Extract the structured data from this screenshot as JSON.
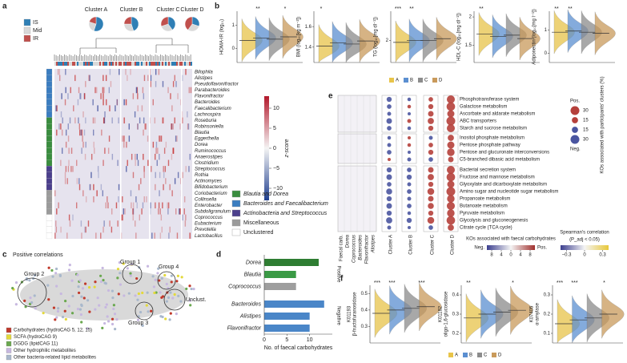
{
  "panel_labels": [
    "a",
    "b",
    "c",
    "d",
    "e",
    "f"
  ],
  "chart_data": [
    {
      "type": "heatmap",
      "clusters": [
        {
          "name": "Cluster A",
          "pie": [
            55,
            25,
            20
          ]
        },
        {
          "name": "Cluster B",
          "pie": [
            45,
            30,
            25
          ]
        },
        {
          "name": "Cluster C",
          "pie": [
            40,
            30,
            30
          ]
        },
        {
          "name": "Cluster D",
          "pie": [
            30,
            30,
            40
          ]
        }
      ],
      "pie_legend": [
        "IS",
        "Mid",
        "IR"
      ],
      "pie_colors": [
        "#2f7fb5",
        "#d9d9d9",
        "#c0504d"
      ],
      "groups": [
        {
          "name": "Blautia and Dorea",
          "color": "#3a8d3f"
        },
        {
          "name": "Bacteroides and Faecalibacterium",
          "color": "#3b7dc0"
        },
        {
          "name": "Actinobacteria and Streptococcus",
          "color": "#4b3f8c"
        },
        {
          "name": "Miscellaneous",
          "color": "#9a9a9a"
        },
        {
          "name": "Unclustered",
          "color": "#ffffff"
        }
      ],
      "taxa": [
        {
          "name": "Bilophila",
          "group": "Bacteroides and Faecalibacterium"
        },
        {
          "name": "Alistipes",
          "group": "Bacteroides and Faecalibacterium"
        },
        {
          "name": "Pseudoflavonifractor",
          "group": "Bacteroides and Faecalibacterium"
        },
        {
          "name": "Parabacteroides",
          "group": "Bacteroides and Faecalibacterium"
        },
        {
          "name": "Flavonifractor",
          "group": "Bacteroides and Faecalibacterium"
        },
        {
          "name": "Bacteroides",
          "group": "Bacteroides and Faecalibacterium"
        },
        {
          "name": "Faecalibacterium",
          "group": "Bacteroides and Faecalibacterium"
        },
        {
          "name": "Lachnospira",
          "group": "Bacteroides and Faecalibacterium"
        },
        {
          "name": "Roseburia",
          "group": "Blautia and Dorea"
        },
        {
          "name": "Robinsoniella",
          "group": "Blautia and Dorea"
        },
        {
          "name": "Blautia",
          "group": "Blautia and Dorea"
        },
        {
          "name": "Eggerthella",
          "group": "Blautia and Dorea"
        },
        {
          "name": "Dorea",
          "group": "Blautia and Dorea"
        },
        {
          "name": "Ruminococcus",
          "group": "Blautia and Dorea"
        },
        {
          "name": "Anaerostipes",
          "group": "Blautia and Dorea"
        },
        {
          "name": "Clostridium",
          "group": "Blautia and Dorea"
        },
        {
          "name": "Streptococcus",
          "group": "Actinobacteria and Streptococcus"
        },
        {
          "name": "Rothia",
          "group": "Actinobacteria and Streptococcus"
        },
        {
          "name": "Actinomyces",
          "group": "Actinobacteria and Streptococcus"
        },
        {
          "name": "Bifidobacterium",
          "group": "Actinobacteria and Streptococcus"
        },
        {
          "name": "Coriobacterium",
          "group": "Miscellaneous"
        },
        {
          "name": "Collinsella",
          "group": "Miscellaneous"
        },
        {
          "name": "Enterobacter",
          "group": "Miscellaneous"
        },
        {
          "name": "Subdoligranulum",
          "group": "Miscellaneous"
        },
        {
          "name": "Coprococcus",
          "group": "Unclustered"
        },
        {
          "name": "Eubacterium",
          "group": "Unclustered"
        },
        {
          "name": "Prevotella",
          "group": "Unclustered"
        },
        {
          "name": "Lactobacillus",
          "group": "Unclustered"
        }
      ],
      "colorbar": {
        "label": "z-score",
        "lim": [
          -13,
          13
        ],
        "ticks": [
          10,
          5,
          0,
          {
            "value": -5,
            "label": "−5"
          },
          {
            "value": -10,
            "label": "−10"
          }
        ]
      }
    },
    {
      "type": "violin",
      "clusters": [
        {
          "name": "A",
          "color": "#e8c44a"
        },
        {
          "name": "B",
          "color": "#5b8fd1"
        },
        {
          "name": "C",
          "color": "#8c8c8c"
        },
        {
          "name": "D",
          "color": "#c99a5b"
        }
      ],
      "plots": [
        {
          "ylabel": "HOMA-IR (log₁₀)",
          "ylim": [
            -0.6,
            1.6
          ],
          "yticks": [
            0,
            1
          ],
          "medians": [
            0.35,
            0.45,
            0.4,
            0.5
          ],
          "stars": [
            null,
            "**",
            null,
            "*"
          ]
        },
        {
          "ylabel": "BMI (log₁₀[kg m⁻²])",
          "ylim": [
            1.25,
            1.75
          ],
          "yticks": [
            1.4,
            1.6
          ],
          "medians": [
            1.41,
            1.44,
            1.43,
            1.46
          ],
          "stars": [
            "*",
            null,
            null,
            null
          ]
        },
        {
          "ylabel": "TG (log₁₀[mg dl⁻¹])",
          "ylim": [
            1.4,
            2.8
          ],
          "yticks": [
            2
          ],
          "medians": [
            1.95,
            2.0,
            2.0,
            2.05
          ],
          "stars": [
            "***",
            "**",
            null,
            null
          ]
        },
        {
          "ylabel": "HDL-C (log₁₀[mg dl⁻¹])",
          "ylim": [
            1.2,
            2.1
          ],
          "yticks": [
            1.5,
            2
          ],
          "medians": [
            1.7,
            1.66,
            1.68,
            1.62
          ],
          "stars": [
            "**",
            null,
            null,
            null
          ]
        },
        {
          "ylabel": "Adiponectin (log₁₀[mg l⁻¹])",
          "ylim": [
            -0.4,
            1.8
          ],
          "yticks": [
            0,
            1
          ],
          "medians": [
            0.9,
            0.95,
            0.9,
            0.85
          ],
          "stars": [
            "**",
            "**",
            null,
            null
          ]
        }
      ]
    },
    {
      "type": "network",
      "title": "Positive correlations",
      "groups": [
        "Group 1",
        "Group 2",
        "Group 3",
        "Group 4",
        "Unclust."
      ],
      "legend": [
        {
          "name": "Carbohydrates (hydroCAG 5, 12, 15)",
          "color": "#c0392b"
        },
        {
          "name": "SCFA (hydroCAG 9)",
          "color": "#e3d93b"
        },
        {
          "name": "DGDG (lipidCAG 11)",
          "color": "#6aa84f"
        },
        {
          "name": "Other hydrophilic metabolites",
          "color": "#c7b8e0"
        },
        {
          "name": "Other bacteria-related lipid metabolites",
          "color": "#a9b8cc"
        }
      ]
    },
    {
      "type": "bar",
      "xlabel": "No. of faecal carbohydrates",
      "xlim": [
        0,
        15
      ],
      "xticks": [
        0,
        5,
        10
      ],
      "series": [
        {
          "name": "Positive",
          "categories": [
            "Dorea",
            "Blautia",
            "Coprococcus"
          ],
          "values": [
            12,
            7,
            7
          ],
          "colors": [
            "#2e7d32",
            "#3a9a45",
            "#9e9e9e"
          ]
        },
        {
          "name": "Negative",
          "categories": [
            "Bacteroides",
            "Alistipes",
            "Flavonifractor"
          ],
          "values": [
            13.2,
            10,
            10
          ],
          "colors": [
            "#4a86c8",
            "#4a86c8",
            "#4a86c8"
          ]
        }
      ]
    },
    {
      "type": "dot",
      "heatmap_columns": [
        "Faecal carb.",
        "Dorea",
        "Coprococcus",
        "Bacteroides",
        "Flavonifractor",
        "Alistipes"
      ],
      "clusters": [
        "Cluster A",
        "Cluster B",
        "Cluster C",
        "Cluster D"
      ],
      "pathway_groups": [
        [
          {
            "name": "Phosphotransferase system",
            "values": [
              -10,
              -5,
              8,
              25
            ]
          },
          {
            "name": "Galactose metabolism",
            "values": [
              -8,
              5,
              10,
              28
            ]
          },
          {
            "name": "Ascorbate and aldarate metabolism",
            "values": [
              -6,
              -4,
              12,
              20
            ]
          },
          {
            "name": "ABC transporters",
            "values": [
              -12,
              6,
              15,
              30
            ]
          },
          {
            "name": "Starch and sucrose metabolism",
            "values": [
              -8,
              -5,
              10,
              25
            ]
          }
        ],
        [
          {
            "name": "Inositol phosphate metabolism",
            "values": [
              -5,
              4,
              -6,
              15
            ]
          },
          {
            "name": "Pentose phosphate pathway",
            "values": [
              -6,
              5,
              8,
              20
            ]
          },
          {
            "name": "Pentose and glucuronate interconversions",
            "values": [
              -8,
              -4,
              10,
              22
            ]
          },
          {
            "name": "C5-branched dibasic acid metabolism",
            "values": [
              4,
              -6,
              -8,
              12
            ]
          }
        ],
        [
          {
            "name": "Bacterial secretion system",
            "values": [
              -10,
              -8,
              12,
              25
            ]
          },
          {
            "name": "Fructose and mannose metabolism",
            "values": [
              -12,
              -10,
              15,
              28
            ]
          },
          {
            "name": "Glyoxylate and dicarboxylate metabolism",
            "values": [
              -8,
              -6,
              10,
              20
            ]
          },
          {
            "name": "Amino sugar and nucleotide sugar metabolism",
            "values": [
              -14,
              -8,
              18,
              30
            ]
          },
          {
            "name": "Propanoate metabolism",
            "values": [
              -10,
              -6,
              12,
              22
            ]
          },
          {
            "name": "Butanoate metabolism",
            "values": [
              -12,
              -8,
              14,
              25
            ]
          },
          {
            "name": "Pyruvate metabolism",
            "values": [
              -10,
              -5,
              10,
              22
            ]
          },
          {
            "name": "Glycolysis and gluconeogenesis",
            "values": [
              -15,
              -10,
              18,
              28
            ]
          },
          {
            "name": "Citrate cycle (TCA cycle)",
            "values": [
              -6,
              -4,
              -8,
              15
            ]
          }
        ]
      ],
      "size_legend": {
        "title": "KOs associated with participants' clusters (%)",
        "pos": "Pos.",
        "neg": "Neg.",
        "values": [
          30,
          15,
          {
            "value": -15,
            "label": "15"
          },
          {
            "value": -30,
            "label": "30"
          }
        ],
        "colors": [
          "#b5403b",
          "#4a55a0"
        ]
      },
      "faecal_colorbar": {
        "title": "KOs associated with faecal carbohydrates",
        "neg": "Neg.",
        "pos": "Pos.",
        "lim": [
          -10,
          10
        ],
        "ticks": [
          {
            "value": -8,
            "label": "8"
          },
          {
            "value": -4,
            "label": "4"
          },
          0,
          4,
          8
        ]
      },
      "spearman_colorbar": {
        "title": "Spearman's correlation",
        "subtitle": "(P_adj < 0.05)",
        "lim": [
          -0.4,
          0.4
        ],
        "ticks": [
          {
            "value": -0.3,
            "label": "−0.3"
          },
          0,
          0.3
        ]
      }
    },
    {
      "type": "violin",
      "clusters": [
        {
          "name": "A",
          "color": "#e8c44a"
        },
        {
          "name": "B",
          "color": "#5b8fd1"
        },
        {
          "name": "C",
          "color": "#8c8c8c"
        },
        {
          "name": "D",
          "color": "#c99a5b"
        }
      ],
      "plots": [
        {
          "id": "K01193",
          "ylabel": "β-fructofuranosidase",
          "ylim": [
            0.2,
            0.55
          ],
          "yticks": [
            0.3,
            0.4,
            0.5
          ],
          "medians": [
            0.38,
            0.4,
            0.41,
            0.42
          ],
          "stars": [
            "***",
            "***",
            null,
            "***"
          ]
        },
        {
          "id": "K01182",
          "ylabel": "oligo-1,6-glucosidase",
          "ylim": [
            0.15,
            0.45
          ],
          "yticks": [
            0.2,
            0.3,
            0.4
          ],
          "medians": [
            0.28,
            0.3,
            0.31,
            0.32
          ],
          "stars": [
            "**",
            null,
            null,
            "*"
          ]
        },
        {
          "id": "K07405",
          "ylabel": "α-amylase",
          "ylim": [
            0.05,
            0.35
          ],
          "yticks": [
            0.1,
            0.2,
            0.3
          ],
          "medians": [
            0.15,
            0.17,
            0.18,
            0.2
          ],
          "stars": [
            "***",
            "***",
            null,
            "*"
          ]
        }
      ]
    }
  ]
}
